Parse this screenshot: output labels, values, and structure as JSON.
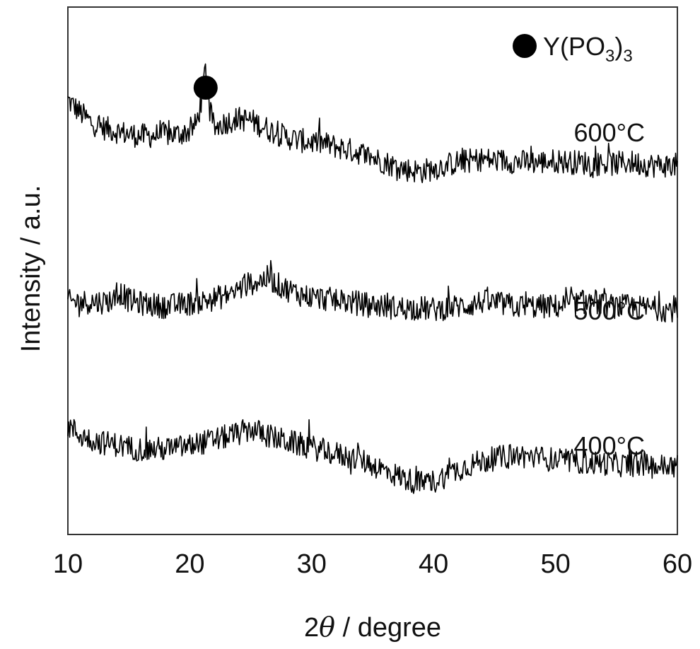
{
  "chart_data": {
    "type": "line",
    "xlabel_prefix": "2",
    "xlabel_symbol": "θ",
    "xlabel_suffix": " / degree",
    "ylabel": "Intensity / a.u.",
    "xlim": [
      10,
      60
    ],
    "xticks": [
      10,
      20,
      30,
      40,
      50,
      60
    ],
    "yticks_shown": false,
    "grid": false,
    "legend": {
      "position": "top-right",
      "marker": "filled-circle",
      "label_main": "Y(PO",
      "label_sub1": "3",
      "label_paren": ")",
      "label_sub2": "3"
    },
    "annotations": [
      {
        "marker": "filled-circle",
        "x": 21.3,
        "series": "600°C"
      }
    ],
    "series": [
      {
        "name": "600°C",
        "color": "#000000",
        "x": [
          10,
          11,
          12,
          13,
          14,
          15,
          16,
          17,
          18,
          19,
          20,
          20.5,
          21,
          21.3,
          21.6,
          22,
          23,
          24,
          25,
          26,
          27,
          28,
          29,
          30,
          31,
          32,
          33,
          34,
          35,
          36,
          37,
          38,
          39,
          40,
          41,
          42,
          43,
          44,
          45,
          46,
          47,
          48,
          49,
          50,
          51,
          52,
          53,
          54,
          55,
          56,
          57,
          58,
          59,
          60
        ],
        "y": [
          2.3,
          2.22,
          2.15,
          2.12,
          2.1,
          2.08,
          2.07,
          2.07,
          2.08,
          2.08,
          2.1,
          2.14,
          2.3,
          2.52,
          2.24,
          2.12,
          2.16,
          2.18,
          2.17,
          2.13,
          2.09,
          2.06,
          2.04,
          2.03,
          2.02,
          2.0,
          1.98,
          1.96,
          1.93,
          1.9,
          1.87,
          1.85,
          1.84,
          1.86,
          1.88,
          1.9,
          1.91,
          1.92,
          1.91,
          1.91,
          1.9,
          1.9,
          1.9,
          1.91,
          1.9,
          1.9,
          1.89,
          1.89,
          1.89,
          1.9,
          1.89,
          1.88,
          1.88,
          1.88
        ]
      },
      {
        "name": "500°C",
        "color": "#000000",
        "x": [
          10,
          11,
          12,
          13,
          14,
          14.3,
          15,
          16,
          17,
          18,
          19,
          20,
          21,
          22,
          23,
          24,
          25,
          26,
          26.5,
          27,
          28,
          29,
          30,
          31,
          32,
          33,
          34,
          35,
          36,
          37,
          38,
          39,
          40,
          41,
          42,
          43,
          44,
          45,
          46,
          47,
          48,
          49,
          50,
          51,
          52,
          53,
          54,
          55,
          56,
          57,
          58,
          59,
          60
        ],
        "y": [
          1.0,
          1.0,
          1.0,
          1.0,
          1.02,
          1.06,
          1.01,
          0.99,
          0.98,
          0.97,
          0.98,
          0.99,
          1.0,
          1.02,
          1.04,
          1.08,
          1.12,
          1.14,
          1.16,
          1.12,
          1.08,
          1.05,
          1.03,
          1.02,
          1.01,
          1.0,
          0.99,
          0.98,
          0.97,
          0.96,
          0.96,
          0.96,
          0.95,
          0.96,
          0.97,
          0.98,
          1.0,
          0.99,
          0.98,
          0.97,
          0.97,
          0.97,
          0.97,
          0.98,
          0.99,
          1.01,
          0.98,
          0.97,
          0.97,
          0.96,
          0.96,
          0.95,
          0.95
        ]
      },
      {
        "name": "400°C",
        "color": "#000000",
        "x": [
          10,
          11,
          12,
          13,
          14,
          15,
          16,
          17,
          18,
          19,
          20,
          21,
          22,
          23,
          24,
          25,
          26,
          27,
          28,
          29,
          30,
          31,
          32,
          33,
          34,
          35,
          36,
          37,
          38,
          39,
          40,
          41,
          42,
          43,
          44,
          45,
          46,
          47,
          48,
          49,
          50,
          51,
          52,
          53,
          54,
          55,
          56,
          57,
          58,
          59,
          60
        ],
        "y": [
          0.2,
          0.14,
          0.11,
          0.09,
          0.08,
          0.06,
          0.05,
          0.05,
          0.05,
          0.06,
          0.07,
          0.09,
          0.11,
          0.13,
          0.15,
          0.18,
          0.15,
          0.12,
          0.1,
          0.08,
          0.06,
          0.04,
          0.02,
          0.0,
          -0.02,
          -0.05,
          -0.09,
          -0.12,
          -0.15,
          -0.17,
          -0.16,
          -0.12,
          -0.08,
          -0.05,
          -0.03,
          -0.01,
          0.0,
          0.01,
          0.0,
          -0.01,
          -0.02,
          -0.03,
          -0.03,
          -0.04,
          -0.04,
          -0.05,
          -0.05,
          -0.05,
          -0.06,
          -0.06,
          -0.06
        ]
      }
    ]
  }
}
